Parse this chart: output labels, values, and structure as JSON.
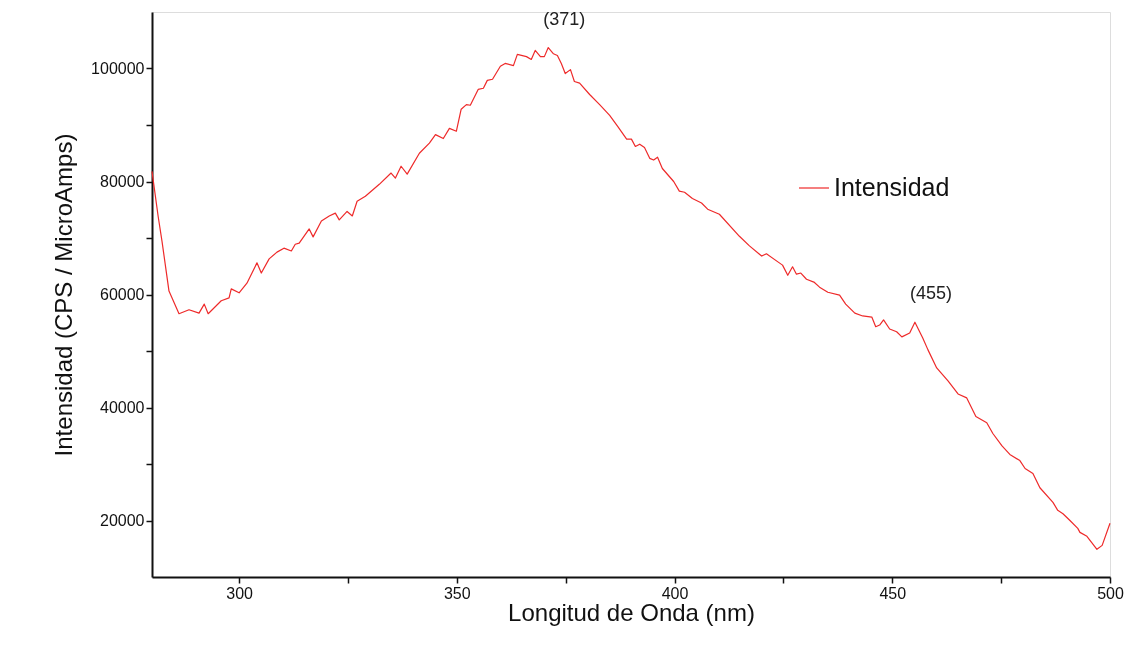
{
  "chart_data": {
    "type": "line",
    "xlabel": "Longitud de Onda (nm)",
    "ylabel": "Intensidad (CPS / MicroAmps)",
    "xlim": [
      280,
      500
    ],
    "ylim": [
      10000,
      110000
    ],
    "xticks": [
      300,
      {
        "value": 325,
        "label": null
      },
      350,
      {
        "value": 375,
        "label": null
      },
      400,
      {
        "value": 425,
        "label": null
      },
      450,
      {
        "value": 475,
        "label": null
      },
      500
    ],
    "yticks": [
      20000,
      {
        "value": 30000,
        "label": null
      },
      40000,
      {
        "value": 50000,
        "label": null
      },
      60000,
      {
        "value": 70000,
        "label": null
      },
      80000,
      {
        "value": 90000,
        "label": null
      },
      100000
    ],
    "grid": false,
    "legend": "top right",
    "marker": "none",
    "line_style": "solid",
    "annotations": [
      {
        "text": "(371)",
        "x": 371,
        "y": 103700
      },
      {
        "text": "(455)",
        "x": 455.2,
        "y": 55100
      }
    ],
    "series": [
      {
        "name": "Intensidad",
        "color": "#ee2a2a",
        "x": [
          280,
          281.4,
          282.3,
          283.9,
          286.2,
          288.5,
          290.8,
          292,
          292.9,
          295.9,
          297.7,
          298.2,
          300,
          301.8,
          304.1,
          305.1,
          306.9,
          308.7,
          310.3,
          312,
          312.9,
          313.8,
          316.1,
          317,
          318.9,
          320.7,
          322.1,
          323,
          324.8,
          326,
          327.1,
          329,
          332.2,
          334.9,
          335.9,
          337.2,
          338.6,
          341.4,
          343.7,
          345.1,
          346.9,
          348.3,
          349.9,
          351.0,
          352.2,
          353.1,
          354.9,
          356.1,
          357.0,
          358.2,
          360.0,
          361.1,
          363.0,
          363.9,
          366.0,
          367.1,
          368.0,
          369.2,
          370.1,
          371.0,
          372.2,
          373.1,
          374.0,
          374.9,
          376.1,
          377.0,
          378.2,
          380.5,
          382.8,
          385.1,
          386.9,
          389.0,
          390.1,
          391.0,
          392.0,
          393.1,
          394.3,
          395.2,
          396.1,
          397.2,
          399.8,
          401.1,
          402.3,
          404.1,
          406.2,
          407.6,
          410.3,
          414.9,
          417.2,
          420.0,
          421.1,
          424.8,
          426.0,
          427.1,
          428.0,
          429.0,
          430.3,
          432.0,
          433.3,
          435.2,
          437.9,
          439.3,
          441.4,
          443.2,
          445.3,
          446.2,
          447.1,
          448.0,
          449.4,
          451.0,
          452.2,
          454.0,
          455.2,
          457.0,
          458.2,
          460.2,
          462.8,
          465.1,
          467.1,
          469.2,
          471.7,
          473.1,
          475.2,
          477.0,
          479.3,
          480.5,
          482.3,
          483.9,
          486.9,
          488.0,
          489.2,
          490.8,
          492.6,
          493.1,
          494.7,
          497.0,
          498.2,
          500.0
        ],
        "values": [
          81800,
          73900,
          69400,
          60600,
          56600,
          57300,
          56700,
          58300,
          56600,
          58900,
          59400,
          61000,
          60300,
          62000,
          65600,
          63800,
          66300,
          67500,
          68200,
          67700,
          68900,
          69100,
          71600,
          70200,
          73000,
          73900,
          74400,
          73200,
          74700,
          73900,
          76500,
          77400,
          79500,
          81500,
          80600,
          82700,
          81300,
          85000,
          86800,
          88300,
          87600,
          89400,
          88900,
          92800,
          93600,
          93500,
          96300,
          96500,
          97900,
          98100,
          100400,
          100900,
          100500,
          102500,
          102100,
          101600,
          103200,
          102100,
          102100,
          103700,
          102600,
          102300,
          100900,
          99100,
          99800,
          97700,
          97400,
          95400,
          93600,
          91700,
          89800,
          87500,
          87500,
          86200,
          86600,
          86000,
          84100,
          83800,
          84300,
          82300,
          80000,
          78300,
          78100,
          77000,
          76200,
          75100,
          74200,
          70300,
          68600,
          66800,
          67200,
          65200,
          63400,
          64900,
          63600,
          63800,
          62700,
          62200,
          61300,
          60400,
          59900,
          58300,
          56700,
          56200,
          56000,
          54300,
          54600,
          55500,
          53900,
          53400,
          52500,
          53200,
          55100,
          52300,
          50200,
          47000,
          44700,
          42400,
          41700,
          38400,
          37300,
          35400,
          33200,
          31700,
          30600,
          29200,
          28300,
          25800,
          23200,
          21800,
          21200,
          20000,
          18600,
          17900,
          17200,
          14900,
          15600,
          19500
        ]
      }
    ]
  }
}
